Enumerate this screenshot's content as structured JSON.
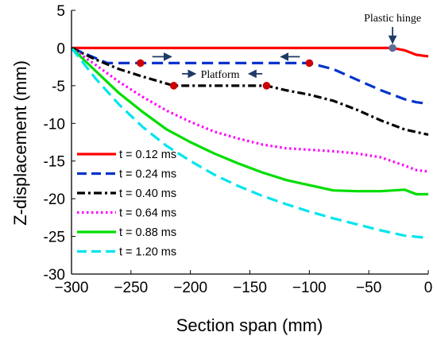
{
  "chart_data": {
    "type": "line",
    "title": "",
    "xlabel": "Section span (mm)",
    "ylabel": "Z-displacement (mm)",
    "xlim": [
      -300,
      0
    ],
    "ylim": [
      -30,
      5
    ],
    "xticks": [
      -300,
      -250,
      -200,
      -150,
      -100,
      -50,
      0
    ],
    "yticks": [
      5,
      0,
      -5,
      -10,
      -15,
      -20,
      -25,
      -30
    ],
    "xtick_labels": [
      "−300",
      "−250",
      "−200",
      "−150",
      "−100",
      "−50",
      "0"
    ],
    "ytick_labels": [
      "5",
      "0",
      "-5",
      "-10",
      "-15",
      "-20",
      "-25",
      "-30"
    ],
    "grid": false,
    "legend_position": "lower-left",
    "series": [
      {
        "name": "t = 0.12 ms",
        "color": "#ff0000",
        "style": "solid",
        "points": [
          [
            -300,
            0
          ],
          [
            -250,
            0
          ],
          [
            -200,
            0
          ],
          [
            -150,
            0
          ],
          [
            -100,
            0
          ],
          [
            -50,
            0
          ],
          [
            -30,
            0
          ],
          [
            -20,
            -0.3
          ],
          [
            -10,
            -0.9
          ],
          [
            0,
            -1.1
          ]
        ]
      },
      {
        "name": "t = 0.24 ms",
        "color": "#0033cc",
        "style": "dashed",
        "points": [
          [
            -300,
            0
          ],
          [
            -285,
            -1
          ],
          [
            -270,
            -2
          ],
          [
            -242,
            -2
          ],
          [
            -200,
            -2
          ],
          [
            -150,
            -2
          ],
          [
            -100,
            -2
          ],
          [
            -80,
            -2.8
          ],
          [
            -60,
            -4.2
          ],
          [
            -40,
            -5.6
          ],
          [
            -20,
            -6.8
          ],
          [
            -10,
            -7.2
          ],
          [
            0,
            -7.4
          ]
        ]
      },
      {
        "name": "t = 0.40 ms",
        "color": "#000000",
        "style": "dashdot",
        "points": [
          [
            -300,
            0
          ],
          [
            -280,
            -1.5
          ],
          [
            -260,
            -2.8
          ],
          [
            -240,
            -3.8
          ],
          [
            -214,
            -5
          ],
          [
            -200,
            -5
          ],
          [
            -170,
            -5
          ],
          [
            -136,
            -5
          ],
          [
            -120,
            -5.6
          ],
          [
            -100,
            -6.2
          ],
          [
            -80,
            -7
          ],
          [
            -60,
            -8.2
          ],
          [
            -40,
            -9.6
          ],
          [
            -20,
            -10.8
          ],
          [
            0,
            -11.5
          ]
        ]
      },
      {
        "name": "t = 0.64 ms",
        "color": "#ff00ff",
        "style": "dotted",
        "points": [
          [
            -300,
            0
          ],
          [
            -280,
            -2.2
          ],
          [
            -260,
            -4.5
          ],
          [
            -240,
            -6.5
          ],
          [
            -220,
            -8.3
          ],
          [
            -200,
            -9.8
          ],
          [
            -180,
            -11.1
          ],
          [
            -160,
            -12
          ],
          [
            -140,
            -12.8
          ],
          [
            -120,
            -13.3
          ],
          [
            -100,
            -13.5
          ],
          [
            -80,
            -13.7
          ],
          [
            -60,
            -14
          ],
          [
            -40,
            -14.5
          ],
          [
            -20,
            -15.6
          ],
          [
            -10,
            -16.2
          ],
          [
            0,
            -16.4
          ]
        ]
      },
      {
        "name": "t = 0.88 ms",
        "color": "#00dd00",
        "style": "solid",
        "points": [
          [
            -300,
            0
          ],
          [
            -280,
            -3
          ],
          [
            -260,
            -6
          ],
          [
            -240,
            -8.5
          ],
          [
            -220,
            -10.8
          ],
          [
            -200,
            -12.5
          ],
          [
            -180,
            -14
          ],
          [
            -160,
            -15.3
          ],
          [
            -140,
            -16.5
          ],
          [
            -120,
            -17.5
          ],
          [
            -100,
            -18.2
          ],
          [
            -80,
            -18.9
          ],
          [
            -60,
            -19
          ],
          [
            -40,
            -19
          ],
          [
            -20,
            -18.8
          ],
          [
            -10,
            -19.4
          ],
          [
            0,
            -19.4
          ]
        ]
      },
      {
        "name": "t = 1.20 ms",
        "color": "#00e5ee",
        "style": "dashed",
        "points": [
          [
            -300,
            0
          ],
          [
            -280,
            -4
          ],
          [
            -260,
            -7.5
          ],
          [
            -240,
            -10.5
          ],
          [
            -220,
            -13
          ],
          [
            -200,
            -15
          ],
          [
            -180,
            -16.8
          ],
          [
            -160,
            -18.3
          ],
          [
            -140,
            -19.6
          ],
          [
            -120,
            -20.7
          ],
          [
            -100,
            -21.7
          ],
          [
            -80,
            -22.6
          ],
          [
            -60,
            -23.4
          ],
          [
            -40,
            -24.2
          ],
          [
            -20,
            -24.9
          ],
          [
            0,
            -25.2
          ]
        ]
      }
    ],
    "markers": [
      {
        "x": -30,
        "y": 0,
        "color": "#5a6f9a"
      },
      {
        "x": -242,
        "y": -2,
        "color": "#cc0000"
      },
      {
        "x": -100,
        "y": -2,
        "color": "#cc0000"
      },
      {
        "x": -214,
        "y": -5,
        "color": "#cc0000"
      },
      {
        "x": -136,
        "y": -5,
        "color": "#cc0000"
      }
    ],
    "annotations": [
      {
        "text": "Plastic hinge",
        "x": -30,
        "y": 0
      },
      {
        "text": "Platform",
        "x": -175,
        "y": -5
      }
    ]
  }
}
